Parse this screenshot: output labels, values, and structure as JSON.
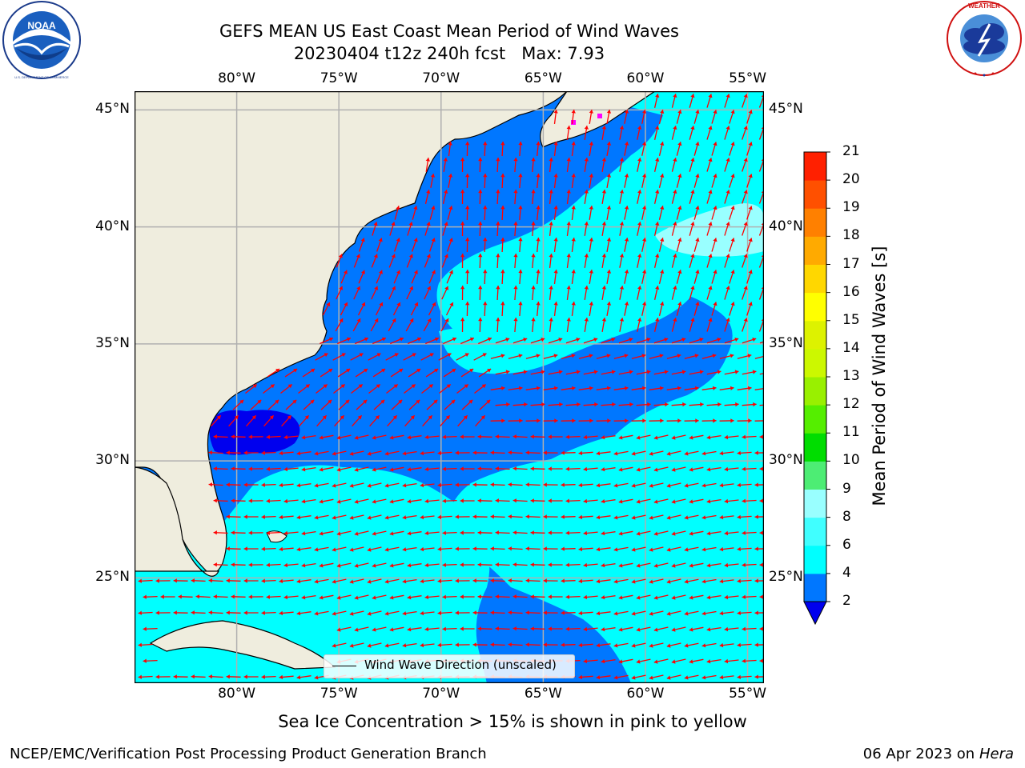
{
  "header": {
    "title_line1": "GEFS MEAN US East Coast Mean Period of Wind Waves",
    "title_line2": "20230404 t12z 240h fcst   Max: 7.93"
  },
  "logos": {
    "left": "noaa-logo",
    "right": "national-weather-service-logo",
    "left_text": "NATIONAL OCEANIC AND ATMOSPHERIC ADMINISTRATION · U.S. DEPARTMENT OF COMMERCE",
    "left_center": "NOAA",
    "right_text": "NATIONAL WEATHER SERVICE"
  },
  "map": {
    "lon_labels": [
      "80°W",
      "75°W",
      "70°W",
      "65°W",
      "60°W",
      "55°W"
    ],
    "lat_labels": [
      "45°N",
      "40°N",
      "35°N",
      "30°N",
      "25°N"
    ],
    "lon_values": [
      -80,
      -75,
      -70,
      -65,
      -60,
      -55
    ],
    "lat_values": [
      45,
      40,
      35,
      30,
      25
    ],
    "extent": {
      "lon_min": -85,
      "lon_max": -54.2,
      "lat_min": 20.5,
      "lat_max": 45.8
    },
    "legend_label": "Wind Wave Direction (unscaled)",
    "arrow_color": "#ff0000",
    "land_color": "#efedde",
    "grid_color": "#b0b0b0"
  },
  "colorbar": {
    "title": "Mean Period of Wind Waves [s]",
    "levels": [
      "2",
      "4",
      "6",
      "8",
      "9",
      "10",
      "11",
      "12",
      "13",
      "14",
      "15",
      "16",
      "17",
      "18",
      "19",
      "20",
      "21"
    ],
    "colors": [
      "#0077ff",
      "#00ffff",
      "#40ffff",
      "#99ffff",
      "#4ded74",
      "#00dd00",
      "#55ee00",
      "#99f000",
      "#ccf800",
      "#ddf200",
      "#ffff00",
      "#ffd700",
      "#ffaa00",
      "#ff8000",
      "#ff5000",
      "#ff2000"
    ],
    "under_color": "#0000ee"
  },
  "footer": {
    "subtitle": "Sea Ice Concentration > 15% is shown in pink to yellow",
    "credit_left": "NCEP/EMC/Verification Post Processing Product Generation Branch",
    "credit_date": "06 Apr 2023 on ",
    "credit_host": "Hera"
  }
}
